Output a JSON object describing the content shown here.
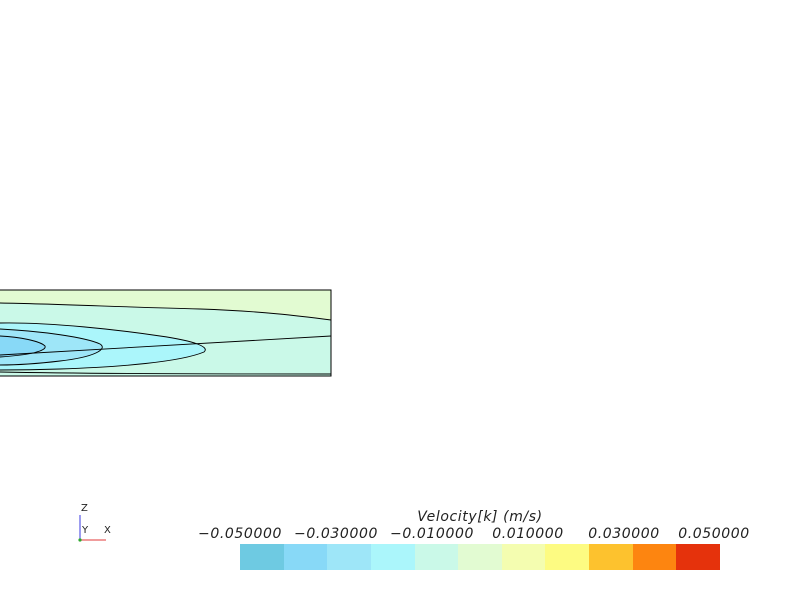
{
  "legend": {
    "title": "Velocity[k] (m/s)",
    "ticks": [
      "−0.050000",
      "−0.030000",
      "−0.010000",
      "0.010000",
      "0.030000",
      "0.050000"
    ],
    "colors": [
      "#6ecae2",
      "#88d9f7",
      "#9ee6f8",
      "#abf6fb",
      "#caf9e8",
      "#e2fbd2",
      "#f4fdb0",
      "#fdfb82",
      "#fdc22e",
      "#fd8510",
      "#e5320c"
    ]
  },
  "axes_triad": {
    "z_label": "Z",
    "y_label": "Y",
    "x_label": "X"
  }
}
